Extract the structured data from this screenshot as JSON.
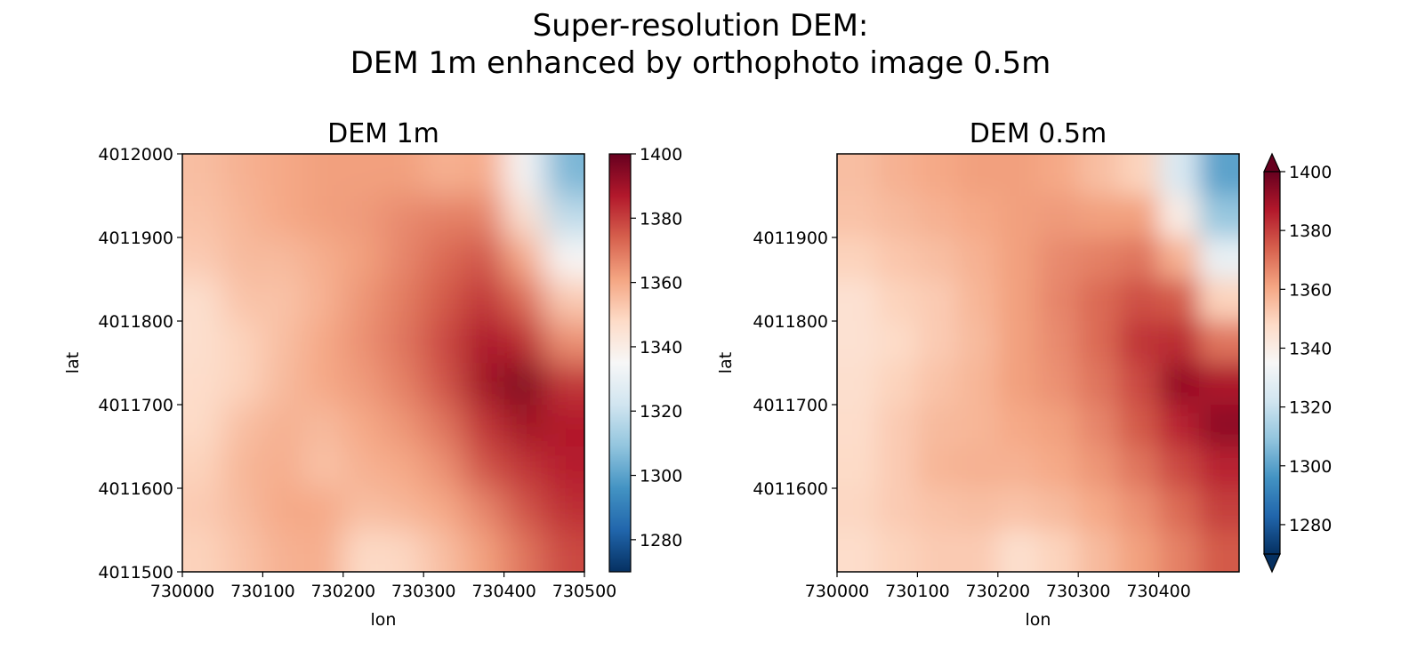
{
  "figure": {
    "title_line1": "Super-resolution DEM:",
    "title_line2": "DEM 1m enhanced by orthophoto image 0.5m"
  },
  "colormap": {
    "name": "RdBu_r",
    "stops": [
      "#053061",
      "#2166ac",
      "#4393c3",
      "#92c5de",
      "#d1e5f0",
      "#f7f7f7",
      "#fddbc7",
      "#f4a582",
      "#d6604d",
      "#b2182b",
      "#67001f"
    ]
  },
  "chart_data": [
    {
      "type": "heatmap",
      "title": "DEM 1m",
      "xlabel": "lon",
      "ylabel": "lat",
      "xlim": [
        730000,
        730500
      ],
      "ylim": [
        4011500,
        4012000
      ],
      "xticks": [
        730000,
        730100,
        730200,
        730300,
        730400,
        730500
      ],
      "yticks": [
        4011500,
        4011600,
        4011700,
        4011800,
        4011900,
        4012000
      ],
      "colorbar": {
        "vmin": 1270,
        "vmax": 1400,
        "ticks": [
          1280,
          1300,
          1320,
          1340,
          1360,
          1380,
          1400
        ],
        "extend": "neither"
      },
      "elevation_grid": {
        "rows_top_to_bottom_lat": [
          4011975,
          4011925,
          4011875,
          4011825,
          4011775,
          4011725,
          4011675,
          4011625,
          4011575,
          4011525
        ],
        "cols_lon": [
          730025,
          730075,
          730125,
          730175,
          730225,
          730275,
          730325,
          730375,
          730425,
          730475
        ],
        "values": [
          [
            1355,
            1358,
            1360,
            1362,
            1362,
            1362,
            1358,
            1360,
            1335,
            1305
          ],
          [
            1354,
            1357,
            1360,
            1362,
            1363,
            1366,
            1368,
            1368,
            1345,
            1318
          ],
          [
            1352,
            1356,
            1356,
            1359,
            1362,
            1367,
            1372,
            1376,
            1360,
            1335
          ],
          [
            1346,
            1354,
            1354,
            1358,
            1364,
            1369,
            1375,
            1382,
            1372,
            1352
          ],
          [
            1346,
            1350,
            1355,
            1360,
            1365,
            1370,
            1378,
            1388,
            1384,
            1365
          ],
          [
            1347,
            1350,
            1356,
            1360,
            1363,
            1368,
            1376,
            1390,
            1396,
            1382
          ],
          [
            1348,
            1355,
            1358,
            1356,
            1360,
            1364,
            1370,
            1382,
            1390,
            1387
          ],
          [
            1350,
            1357,
            1359,
            1354,
            1358,
            1360,
            1365,
            1376,
            1382,
            1386
          ],
          [
            1352,
            1356,
            1360,
            1360,
            1355,
            1357,
            1360,
            1367,
            1376,
            1383
          ],
          [
            1350,
            1354,
            1358,
            1359,
            1348,
            1349,
            1355,
            1362,
            1370,
            1378
          ]
        ]
      }
    },
    {
      "type": "heatmap",
      "title": "DEM 0.5m",
      "xlabel": "lon",
      "ylabel": "lat",
      "xlim": [
        730000,
        730500
      ],
      "ylim": [
        4011500,
        4012000
      ],
      "xticks": [
        730000,
        730100,
        730200,
        730300,
        730400
      ],
      "yticks": [
        4011600,
        4011700,
        4011800,
        4011900
      ],
      "colorbar": {
        "vmin": 1270,
        "vmax": 1400,
        "ticks": [
          1280,
          1300,
          1320,
          1340,
          1360,
          1380,
          1400
        ],
        "extend": "both"
      },
      "elevation_grid": {
        "rows_top_to_bottom_lat": [
          4011975,
          4011925,
          4011875,
          4011825,
          4011775,
          4011725,
          4011675,
          4011625,
          4011575,
          4011525
        ],
        "cols_lon": [
          730025,
          730075,
          730125,
          730175,
          730225,
          730275,
          730325,
          730375,
          730425,
          730475
        ],
        "values": [
          [
            1355,
            1358,
            1360,
            1362,
            1362,
            1360,
            1355,
            1350,
            1325,
            1300
          ],
          [
            1354,
            1356,
            1358,
            1360,
            1362,
            1363,
            1362,
            1362,
            1340,
            1310
          ],
          [
            1350,
            1353,
            1355,
            1358,
            1362,
            1366,
            1368,
            1370,
            1358,
            1330
          ],
          [
            1345,
            1350,
            1352,
            1357,
            1362,
            1367,
            1372,
            1377,
            1375,
            1350
          ],
          [
            1345,
            1348,
            1352,
            1356,
            1362,
            1366,
            1372,
            1382,
            1384,
            1370
          ],
          [
            1346,
            1350,
            1354,
            1357,
            1362,
            1365,
            1370,
            1378,
            1392,
            1388
          ],
          [
            1347,
            1352,
            1356,
            1357,
            1360,
            1362,
            1367,
            1375,
            1385,
            1393
          ],
          [
            1348,
            1352,
            1357,
            1358,
            1358,
            1360,
            1364,
            1370,
            1378,
            1385
          ],
          [
            1349,
            1352,
            1354,
            1355,
            1354,
            1356,
            1360,
            1365,
            1372,
            1380
          ],
          [
            1347,
            1350,
            1352,
            1352,
            1346,
            1350,
            1356,
            1362,
            1368,
            1375
          ]
        ]
      }
    }
  ]
}
